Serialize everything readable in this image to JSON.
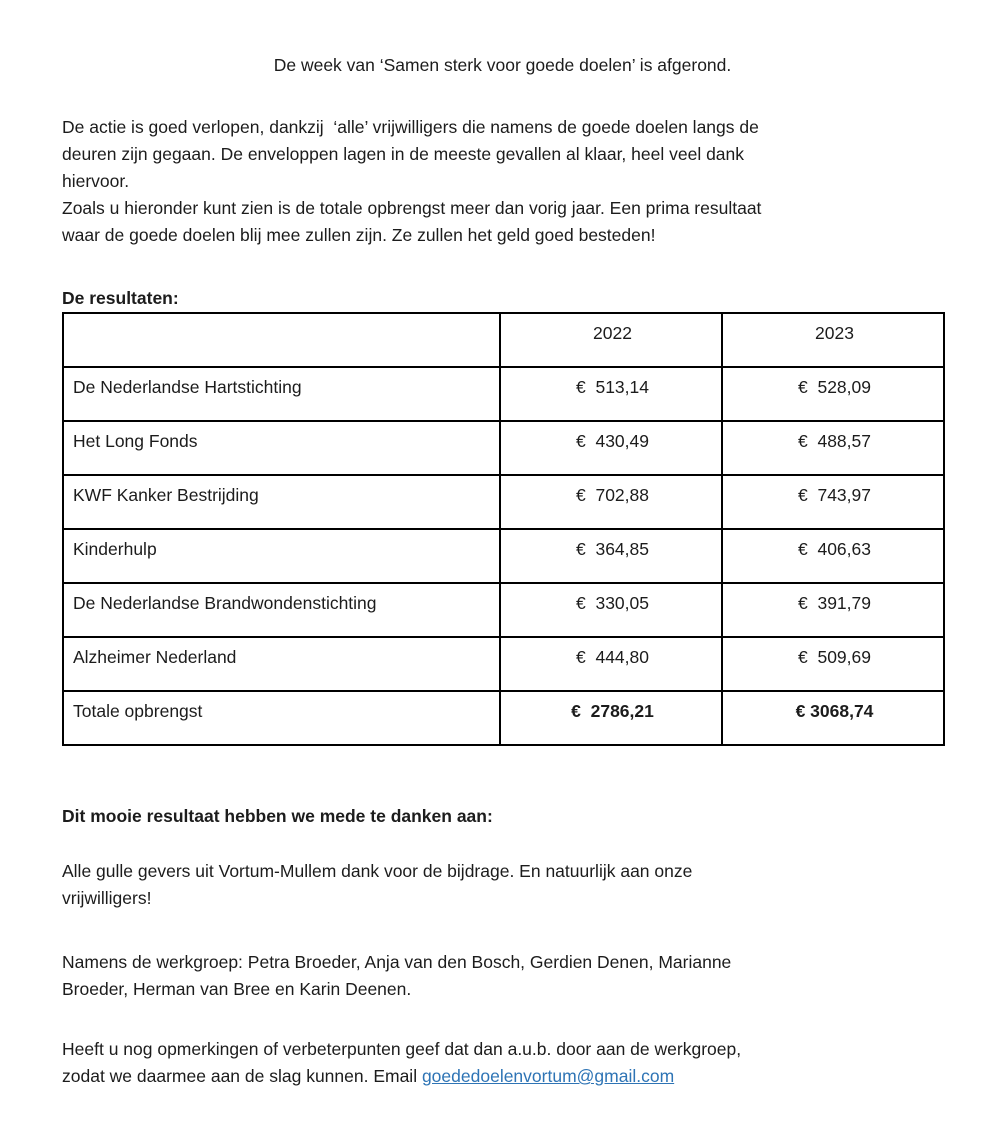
{
  "colors": {
    "background": "#ffffff",
    "text": "#1c1c1c",
    "table_border": "#000000",
    "link": "#2E74B5"
  },
  "title": "De week van ‘Samen sterk voor goede doelen’ is afgerond.",
  "intro": {
    "lines": [
      "De actie is goed verlopen, dankzij  ‘alle’ vrijwilligers die namens de goede doelen langs de",
      "deuren zijn gegaan. De enveloppen lagen in de meeste gevallen al klaar, heel veel dank",
      "hiervoor.",
      "Zoals u hieronder kunt zien is de totale opbrengst meer dan vorig jaar. Een prima resultaat",
      "waar de goede doelen blij mee zullen zijn. Ze zullen het geld goed besteden!"
    ]
  },
  "results": {
    "heading": "De resultaten:",
    "table": {
      "year_headers": [
        "2022",
        "2023"
      ],
      "rows": [
        {
          "label": "De Nederlandse Hartstichting",
          "v2022": "€  513,14",
          "v2023": "€  528,09"
        },
        {
          "label": "Het Long Fonds",
          "v2022": "€  430,49",
          "v2023": "€  488,57"
        },
        {
          "label": "KWF Kanker Bestrijding",
          "v2022": "€  702,88",
          "v2023": "€  743,97"
        },
        {
          "label": "Kinderhulp",
          "v2022": "€  364,85",
          "v2023": "€  406,63"
        },
        {
          "label": "De Nederlandse Brandwondenstichting",
          "v2022": "€  330,05",
          "v2023": "€  391,79"
        },
        {
          "label": "Alzheimer Nederland",
          "v2022": "€  444,80",
          "v2023": "€  509,69"
        },
        {
          "label": "Totale opbrengst",
          "v2022": "€  2786,21",
          "v2023": "€ 3068,74"
        }
      ]
    }
  },
  "thanks": {
    "heading": "Dit mooie resultaat hebben we mede te danken aan:",
    "lines": [
      "Alle gulle gevers uit Vortum-Mullem dank voor de bijdrage. En natuurlijk aan onze",
      "vrijwilligers!"
    ]
  },
  "workgroup": {
    "lines": [
      "Namens de werkgroep: Petra Broeder, Anja van den Bosch, Gerdien Denen, Marianne",
      "Broeder, Herman van Bree en Karin Deenen."
    ]
  },
  "feedback": {
    "line1": "Heeft u nog opmerkingen of verbeterpunten geef dat dan a.u.b. door aan de werkgroep,",
    "line2_prefix": "zodat we daarmee aan de slag kunnen. Email ",
    "email": "goededoelenvortum@gmail.com"
  }
}
